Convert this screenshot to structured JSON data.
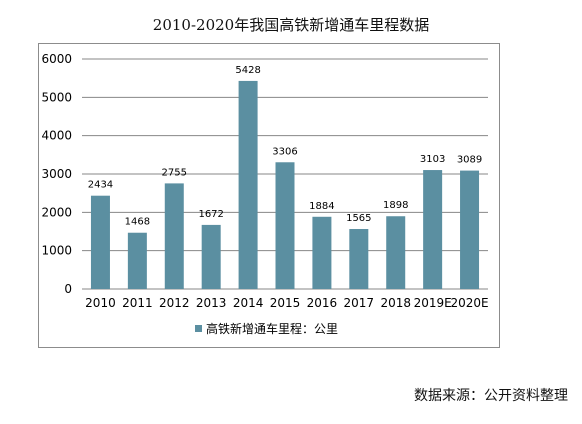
{
  "title": "2010-2020年我国高铁新增通车里程数据",
  "source": "数据来源：公开资料整理",
  "colors": {
    "bar": "#5b8fa1",
    "grid": "#878787",
    "axis": "#878787",
    "text": "#000000"
  },
  "chart_data": {
    "type": "bar",
    "title": "2010-2020年我国高铁新增通车里程数据",
    "xlabel": "",
    "ylabel": "",
    "categories": [
      "2010",
      "2011",
      "2012",
      "2013",
      "2014",
      "2015",
      "2016",
      "2017",
      "2018",
      "2019E",
      "2020E"
    ],
    "series": [
      {
        "name": "高铁新增通车里程：公里",
        "values": [
          2434,
          1468,
          2755,
          1672,
          5428,
          3306,
          1884,
          1565,
          1898,
          3103,
          3089
        ]
      }
    ],
    "ylim": [
      0,
      6000
    ],
    "yticks": [
      0,
      1000,
      2000,
      3000,
      4000,
      5000,
      6000
    ],
    "grid": true,
    "data_labels": true,
    "legend_position": "bottom"
  }
}
